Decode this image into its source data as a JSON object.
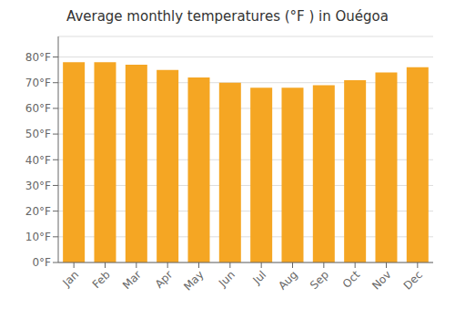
{
  "chart_data": {
    "type": "bar",
    "title": "Average monthly temperatures (°F ) in Ouégoa",
    "categories": [
      "Jan",
      "Feb",
      "Mar",
      "Apr",
      "May",
      "Jun",
      "Jul",
      "Aug",
      "Sep",
      "Oct",
      "Nov",
      "Dec"
    ],
    "values": [
      78,
      78,
      77,
      75,
      72,
      70,
      68,
      68,
      69,
      71,
      74,
      76
    ],
    "color": "#F5A623",
    "ylim": [
      0,
      88
    ],
    "yticks": [
      {
        "value": 0,
        "label": "0°F"
      },
      {
        "value": 10,
        "label": "10°F"
      },
      {
        "value": 20,
        "label": "20°F"
      },
      {
        "value": 30,
        "label": "30°F"
      },
      {
        "value": 40,
        "label": "40°F"
      },
      {
        "value": 50,
        "label": "50°F"
      },
      {
        "value": 60,
        "label": "60°F"
      },
      {
        "value": 70,
        "label": "70°F"
      },
      {
        "value": 80,
        "label": "80°F"
      }
    ],
    "grid": true
  }
}
